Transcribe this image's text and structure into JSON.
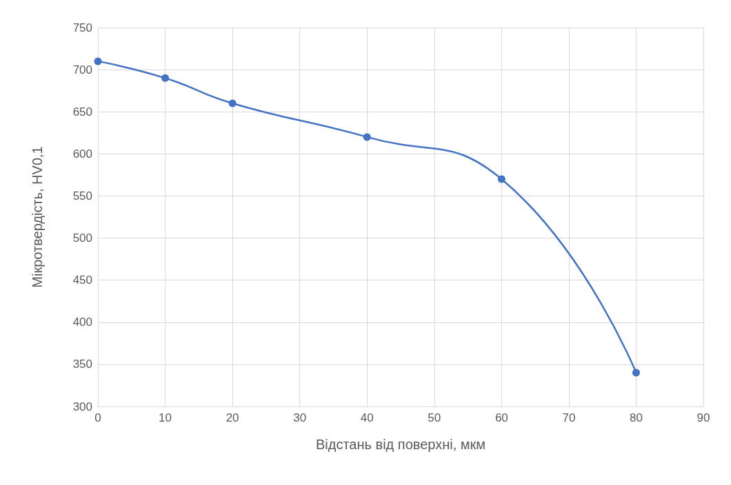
{
  "chart_data": {
    "type": "line",
    "xlabel": "Відстань від поверхні, мкм",
    "ylabel": "Мікротвердість, HV0,1",
    "x": [
      0,
      10,
      20,
      40,
      60,
      80
    ],
    "series": [
      {
        "color": "#4472c4",
        "values": [
          710,
          690,
          660,
          620,
          570,
          340
        ]
      }
    ],
    "xlim": [
      0,
      90
    ],
    "xticks": [
      0,
      10,
      20,
      30,
      40,
      50,
      60,
      70,
      80,
      90
    ],
    "ylim": [
      300,
      750
    ],
    "yticks": [
      300,
      350,
      400,
      450,
      500,
      550,
      600,
      650,
      700,
      750
    ],
    "grid": true,
    "marker": "circle",
    "line_style": "solid"
  }
}
